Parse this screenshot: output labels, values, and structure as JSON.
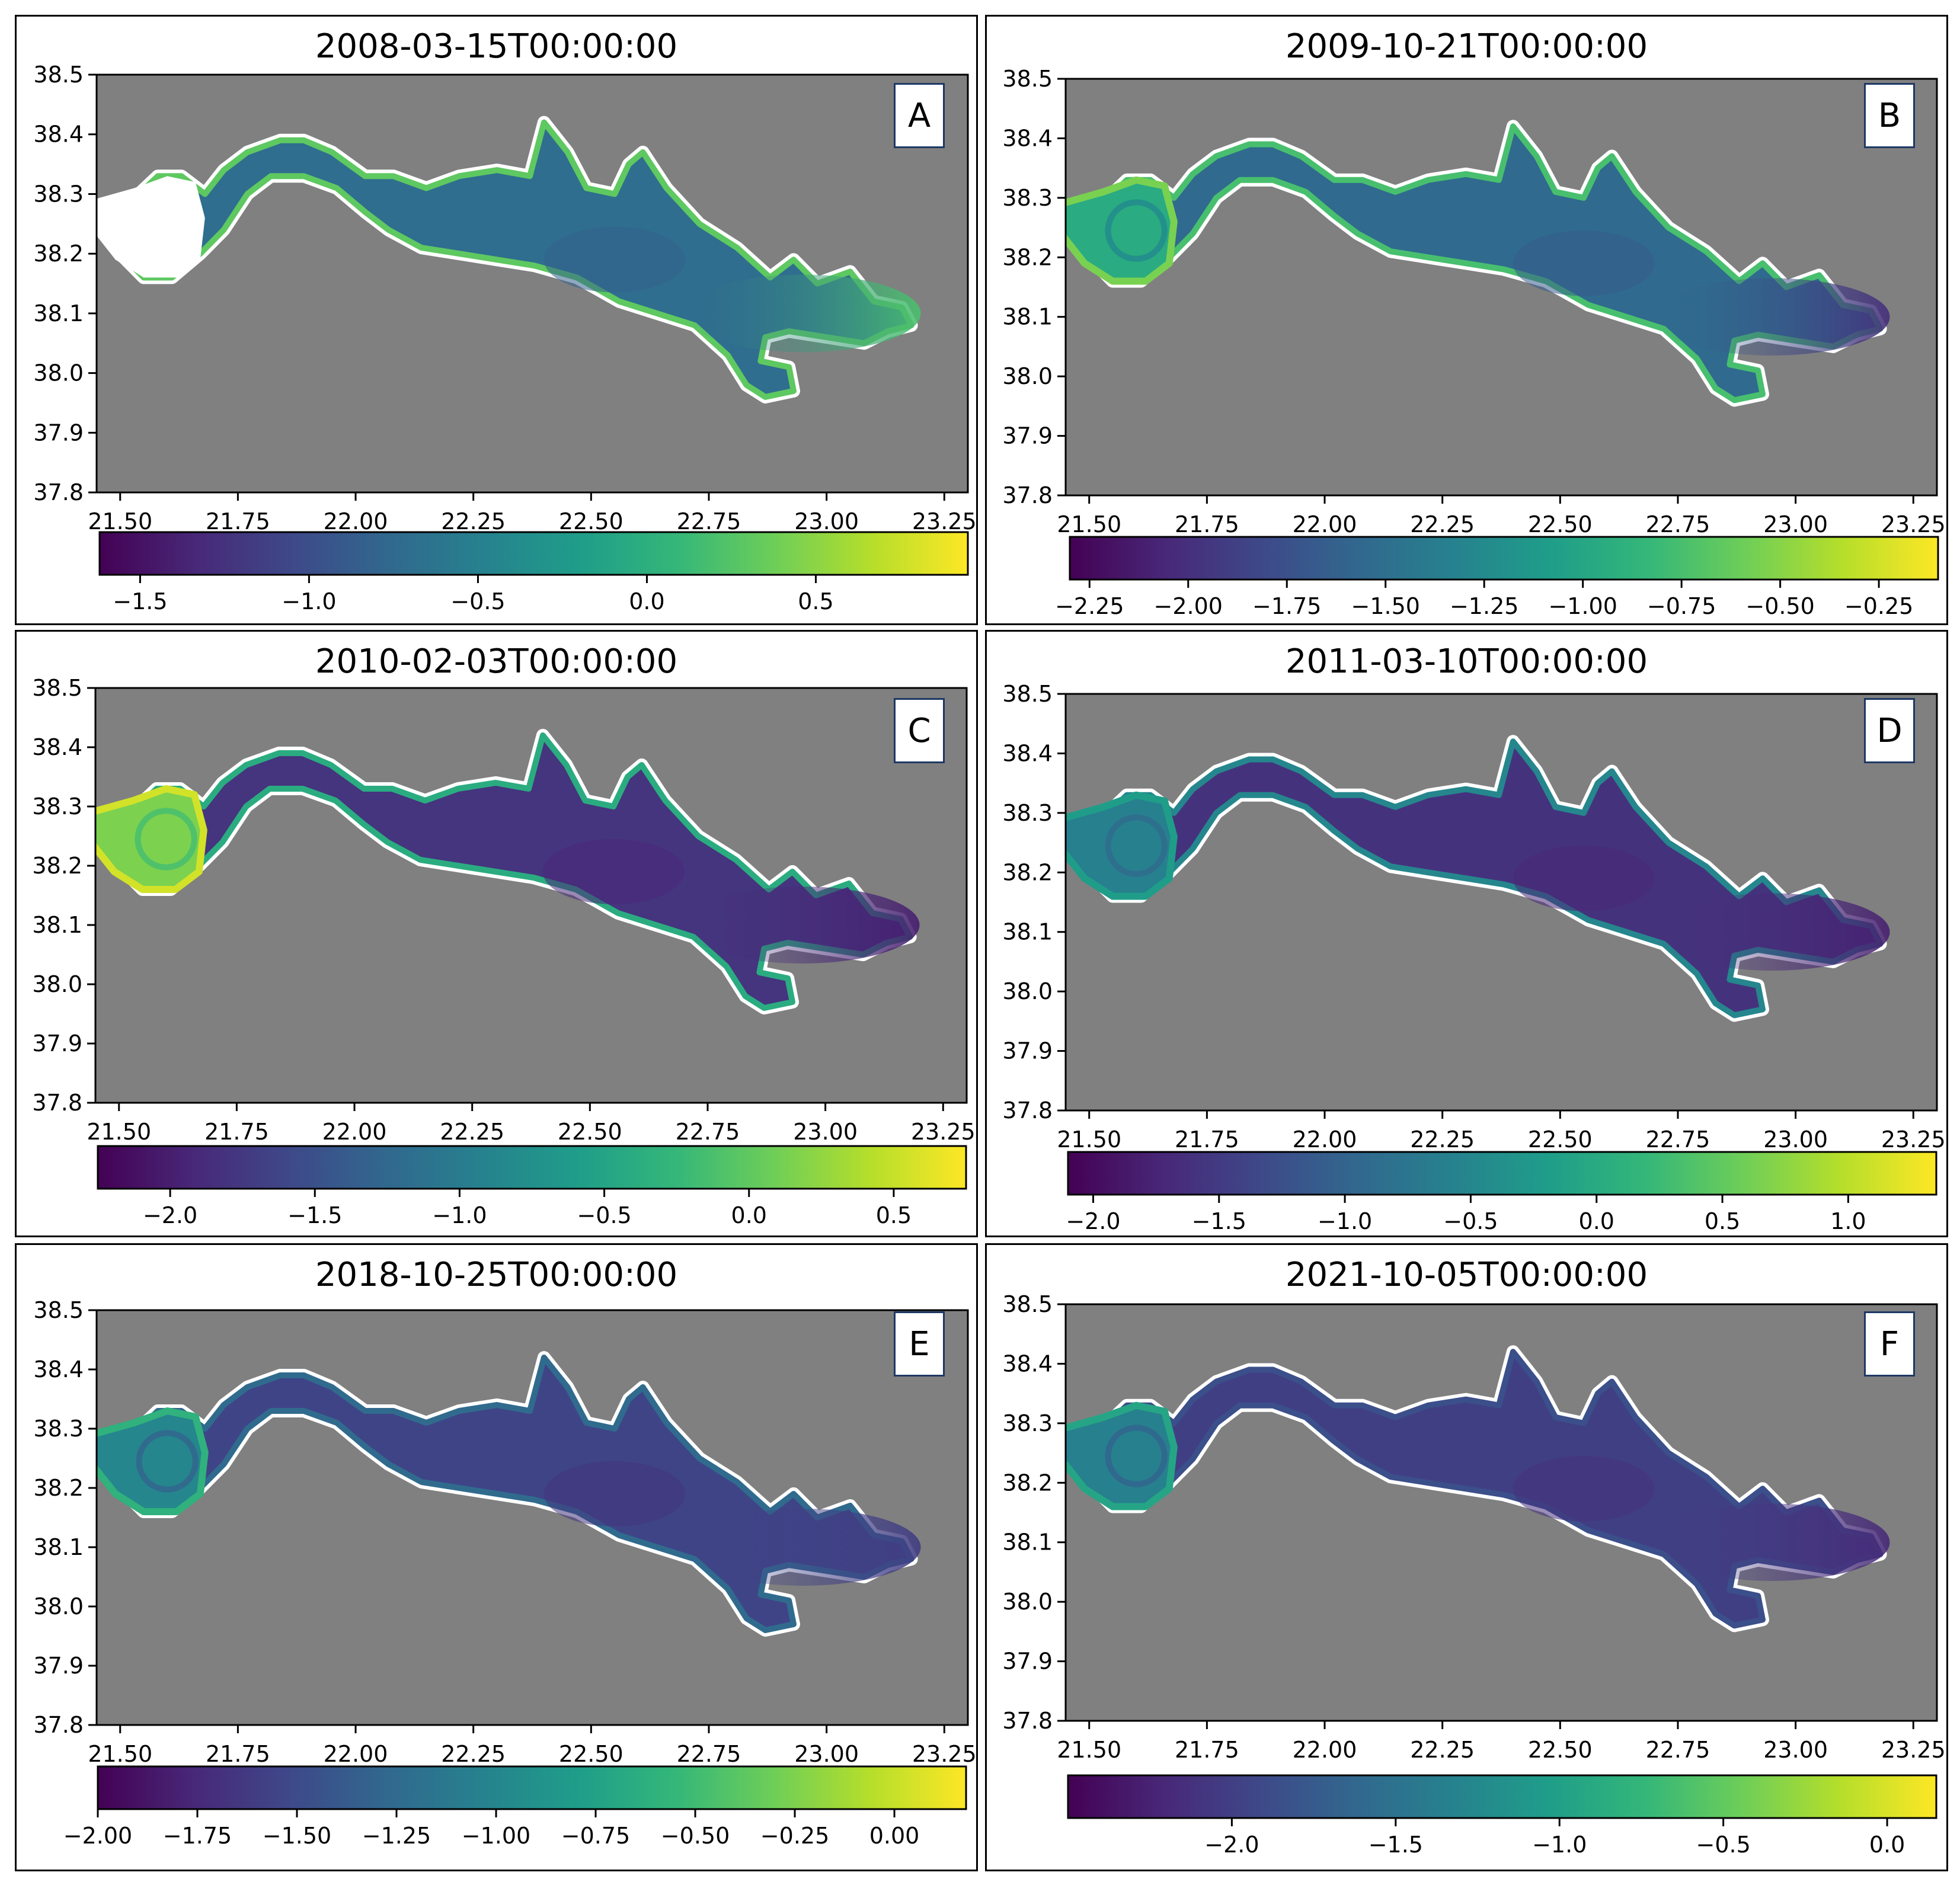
{
  "colors": {
    "ocean": "#808080",
    "gap": "#ffffff",
    "frame": "#000000",
    "labelBorder": "#1f3864"
  },
  "chart_data": [
    {
      "type": "heatmap",
      "panel": "A",
      "title": "2008-03-15T00:00:00",
      "xticks": [
        "21.50",
        "21.75",
        "22.00",
        "22.25",
        "22.50",
        "22.75",
        "23.00",
        "23.25"
      ],
      "yticks": [
        "38.5",
        "38.4",
        "38.3",
        "38.2",
        "38.1",
        "38.0",
        "37.9",
        "37.8"
      ],
      "xlim": [
        21.45,
        23.3
      ],
      "ylim": [
        37.8,
        38.5
      ],
      "colorbar": {
        "min": -1.62,
        "max": 0.95,
        "ticks": [
          "−1.5",
          "−1.0",
          "−0.5",
          "0.0",
          "0.5"
        ],
        "tick_values": [
          -1.5,
          -1.0,
          -0.5,
          0.0,
          0.5
        ]
      },
      "field": {
        "western_basin": "no data",
        "central_mean": -0.7,
        "rim": 0.4,
        "eastern_end": 0.3
      }
    },
    {
      "type": "heatmap",
      "panel": "B",
      "title": "2009-10-21T00:00:00",
      "xticks": [
        "21.50",
        "21.75",
        "22.00",
        "22.25",
        "22.50",
        "22.75",
        "23.00",
        "23.25"
      ],
      "yticks": [
        "38.5",
        "38.4",
        "38.3",
        "38.2",
        "38.1",
        "38.0",
        "37.9",
        "37.8"
      ],
      "xlim": [
        21.45,
        23.3
      ],
      "ylim": [
        37.8,
        38.5
      ],
      "colorbar": {
        "min": -2.3,
        "max": -0.1,
        "ticks": [
          "−2.25",
          "−2.00",
          "−1.75",
          "−1.50",
          "−1.25",
          "−1.00",
          "−0.75",
          "−0.50",
          "−0.25"
        ],
        "tick_values": [
          -2.25,
          -2.0,
          -1.75,
          -1.5,
          -1.25,
          -1.0,
          -0.75,
          -0.5,
          -0.25
        ]
      },
      "field": {
        "western_basin": -1.0,
        "central_mean": -1.6,
        "rim": -0.8,
        "eastern_end": -2.0
      }
    },
    {
      "type": "heatmap",
      "panel": "C",
      "title": "2010-02-03T00:00:00",
      "xticks": [
        "21.50",
        "21.75",
        "22.00",
        "22.25",
        "22.50",
        "22.75",
        "23.00",
        "23.25"
      ],
      "yticks": [
        "38.5",
        "38.4",
        "38.3",
        "38.2",
        "38.1",
        "38.0",
        "37.9",
        "37.8"
      ],
      "xlim": [
        21.45,
        23.3
      ],
      "ylim": [
        37.8,
        38.5
      ],
      "colorbar": {
        "min": -2.25,
        "max": 0.75,
        "ticks": [
          "−2.0",
          "−1.5",
          "−1.0",
          "−0.5",
          "0.0",
          "0.5"
        ],
        "tick_values": [
          -2.0,
          -1.5,
          -1.0,
          -0.5,
          0.0,
          0.5
        ]
      },
      "field": {
        "western_basin": 0.1,
        "central_mean": -1.8,
        "rim": -0.3,
        "eastern_end": -2.0
      }
    },
    {
      "type": "heatmap",
      "panel": "D",
      "title": "2011-03-10T00:00:00",
      "xticks": [
        "21.50",
        "21.75",
        "22.00",
        "22.25",
        "22.50",
        "22.75",
        "23.00",
        "23.25"
      ],
      "yticks": [
        "38.5",
        "38.4",
        "38.3",
        "38.2",
        "38.1",
        "38.0",
        "37.9",
        "37.8"
      ],
      "xlim": [
        21.45,
        23.3
      ],
      "ylim": [
        37.8,
        38.5
      ],
      "colorbar": {
        "min": -2.1,
        "max": 1.35,
        "ticks": [
          "−2.0",
          "−1.5",
          "−1.0",
          "−0.5",
          "0.0",
          "0.5",
          "1.0"
        ],
        "tick_values": [
          -2.0,
          -1.5,
          -1.0,
          -0.5,
          0.0,
          0.5,
          1.0
        ]
      },
      "field": {
        "western_basin": -0.7,
        "central_mean": -1.6,
        "rim": -0.5,
        "eastern_end": -1.8
      }
    },
    {
      "type": "heatmap",
      "panel": "E",
      "title": "2018-10-25T00:00:00",
      "xticks": [
        "21.50",
        "21.75",
        "22.00",
        "22.25",
        "22.50",
        "22.75",
        "23.00",
        "23.25"
      ],
      "yticks": [
        "38.5",
        "38.4",
        "38.3",
        "38.2",
        "38.1",
        "38.0",
        "37.9",
        "37.8"
      ],
      "xlim": [
        21.45,
        23.3
      ],
      "ylim": [
        37.8,
        38.5
      ],
      "colorbar": {
        "min": -2.0,
        "max": 0.18,
        "ticks": [
          "−2.00",
          "−1.75",
          "−1.50",
          "−1.25",
          "−1.00",
          "−0.75",
          "−0.50",
          "−0.25",
          "0.00"
        ],
        "tick_values": [
          -2.0,
          -1.75,
          -1.5,
          -1.25,
          -1.0,
          -0.75,
          -0.5,
          -0.25,
          0.0
        ]
      },
      "field": {
        "western_basin": -1.0,
        "central_mean": -1.55,
        "rim": -1.2,
        "eastern_end": -1.6
      }
    },
    {
      "type": "heatmap",
      "panel": "F",
      "title": "2021-10-05T00:00:00",
      "xticks": [
        "21.50",
        "21.75",
        "22.00",
        "22.25",
        "22.50",
        "22.75",
        "23.00",
        "23.25"
      ],
      "yticks": [
        "38.5",
        "38.4",
        "38.3",
        "38.2",
        "38.1",
        "38.0",
        "37.9",
        "37.8"
      ],
      "xlim": [
        21.45,
        23.3
      ],
      "ylim": [
        37.8,
        38.5
      ],
      "colorbar": {
        "min": -2.5,
        "max": 0.15,
        "ticks": [
          "−2.0",
          "−1.5",
          "−1.0",
          "−0.5",
          "0.0"
        ],
        "tick_values": [
          -2.0,
          -1.5,
          -1.0,
          -0.5,
          0.0
        ]
      },
      "field": {
        "western_basin": -1.3,
        "central_mean": -2.0,
        "rim": -1.8,
        "eastern_end": -2.2
      }
    }
  ]
}
